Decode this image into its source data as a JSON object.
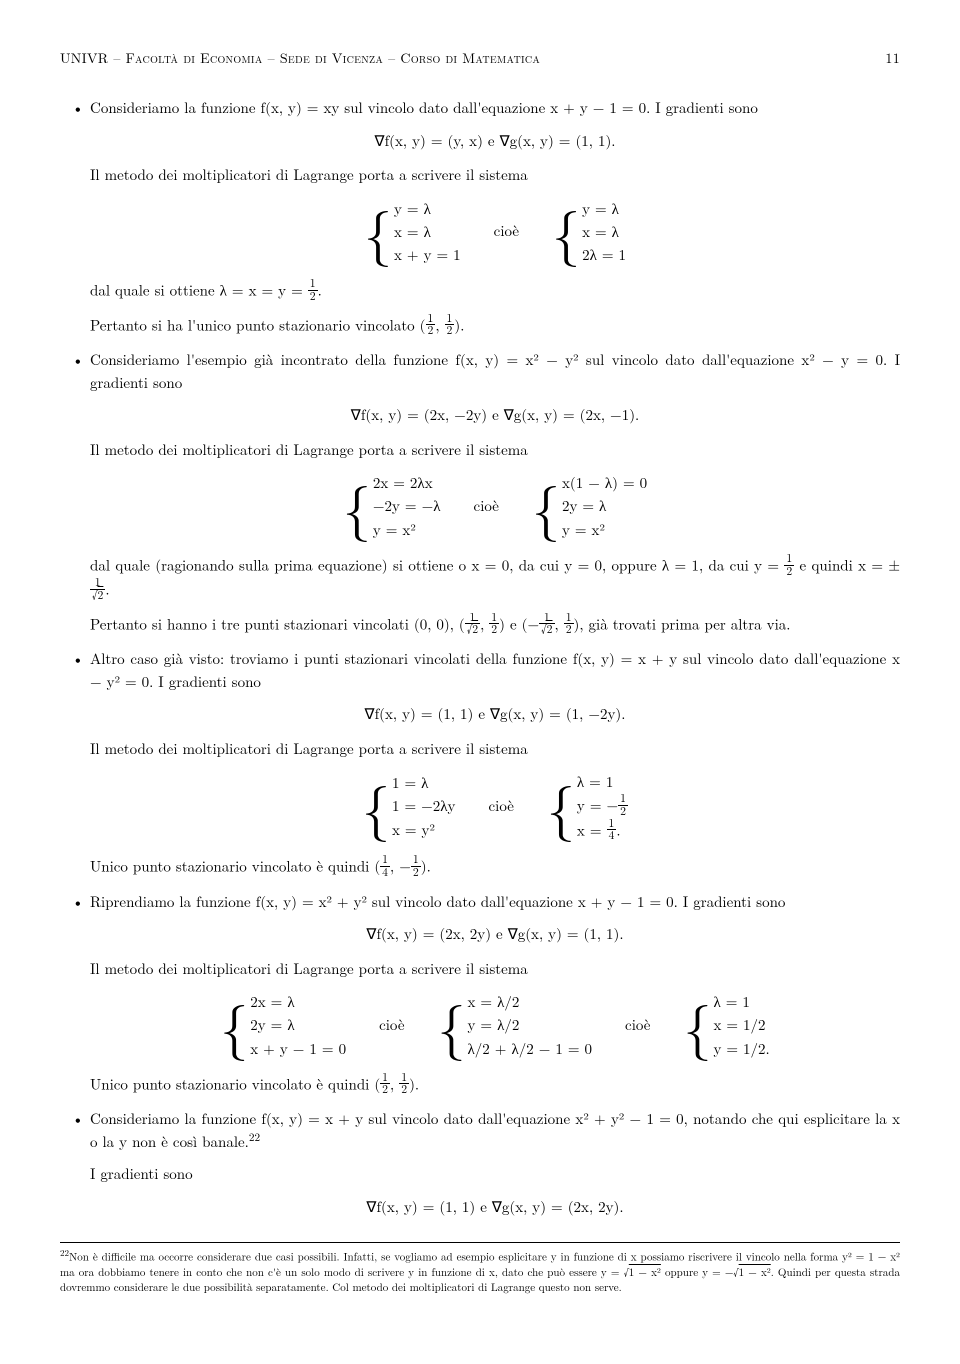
{
  "header": {
    "left": "UNIVR – Facoltà di Economia – Sede di Vicenza – Corso di Matematica",
    "page": "11"
  },
  "b1": {
    "p1": "Consideriamo la funzione f(x, y) = xy sul vincolo dato dall'equazione x + y − 1 = 0. I gradienti sono",
    "grad": "∇f(x, y) = (y, x)      e      ∇g(x, y) = (1, 1).",
    "p2": "Il metodo dei moltiplicatori di Lagrange porta a scrivere il sistema",
    "s1a": "y = λ",
    "s1b": "x = λ",
    "s1c": "x + y = 1",
    "cioe": "cioè",
    "s2a": "y = λ",
    "s2b": "x = λ",
    "s2c": "2λ = 1",
    "p3_a": "dal quale si ottiene λ = x = y = ",
    "p3_b": ".",
    "p4_a": "Pertanto si ha l'unico punto stazionario vincolato (",
    "p4_b": ")."
  },
  "b2": {
    "p1": "Consideriamo l'esempio già incontrato della funzione f(x, y) = x² − y² sul vincolo dato dall'equazione x² − y = 0. I gradienti sono",
    "grad": "∇f(x, y) = (2x, −2y)      e      ∇g(x, y) = (2x, −1).",
    "p2": "Il metodo dei moltiplicatori di Lagrange porta a scrivere il sistema",
    "s1a": "2x = 2λx",
    "s1b": "−2y = −λ",
    "s1c": "y = x²",
    "s2a": "x(1 − λ) = 0",
    "s2b": "2y = λ",
    "s2c": "y = x²",
    "p3_a": "dal quale (ragionando sulla prima equazione) si ottiene o x = 0, da cui y = 0, oppure λ = 1, da cui y = ",
    "p3_b": " e quindi x = ±",
    "p3_c": ".",
    "p4_a": "Pertanto si hanno i tre punti stazionari vincolati (0, 0), (",
    "p4_b": ") e (−",
    "p4_c": "), già trovati prima per altra via."
  },
  "b3": {
    "p1": "Altro caso già visto: troviamo i punti stazionari vincolati della funzione f(x, y) = x + y sul vincolo dato dall'equazione x − y² = 0. I gradienti sono",
    "grad": "∇f(x, y) = (1, 1)      e      ∇g(x, y) = (1, −2y).",
    "p2": "Il metodo dei moltiplicatori di Lagrange porta a scrivere il sistema",
    "s1a": "1 = λ",
    "s1b": "1 = −2λy",
    "s1c": "x = y²",
    "s2a": "λ = 1",
    "s2b_a": "y = −",
    "s2c_a": "x = ",
    "s2c_b": ".",
    "p3_a": "Unico punto stazionario vincolato è quindi (",
    "p3_b": ", −",
    "p3_c": ")."
  },
  "b4": {
    "p1": "Riprendiamo la funzione f(x, y) = x² + y² sul vincolo dato dall'equazione x + y − 1 = 0. I gradienti sono",
    "grad": "∇f(x, y) = (2x, 2y)      e      ∇g(x, y) = (1, 1).",
    "p2": "Il metodo dei moltiplicatori di Lagrange porta a scrivere il sistema",
    "s1a": "2x = λ",
    "s1b": "2y = λ",
    "s1c": "x + y − 1 = 0",
    "s2a": "x = λ/2",
    "s2b": "y = λ/2",
    "s2c": "λ/2 + λ/2 − 1 = 0",
    "s3a": "λ = 1",
    "s3b": "x = 1/2",
    "s3c": "y = 1/2.",
    "p3_a": "Unico punto stazionario vincolato è quindi (",
    "p3_b": ")."
  },
  "b5": {
    "p1": "Consideriamo la funzione f(x, y) = x + y sul vincolo dato dall'equazione x² + y² − 1 = 0, notando che qui esplicitare la x o la y non è così banale.",
    "fnref": "22",
    "p2": "I gradienti sono",
    "grad": "∇f(x, y) = (1, 1)      e      ∇g(x, y) = (2x, 2y)."
  },
  "footnote": {
    "num": "22",
    "text_a": "Non è difficile ma occorre considerare due casi possibili. Infatti, se vogliamo ad esempio esplicitare y in funzione di x possiamo riscrivere il vincolo nella forma y² = 1 − x² ma ora dobbiamo tenere in conto che non c'è un solo modo di scrivere y in funzione di x, dato che può essere y = √",
    "text_b": " oppure y = −√",
    "text_c": ". Quindi per questa strada dovremmo considerare le due possibilità separatamente. Col metodo dei moltiplicatori di Lagrange questo non serve.",
    "rad": "1 − x²"
  }
}
